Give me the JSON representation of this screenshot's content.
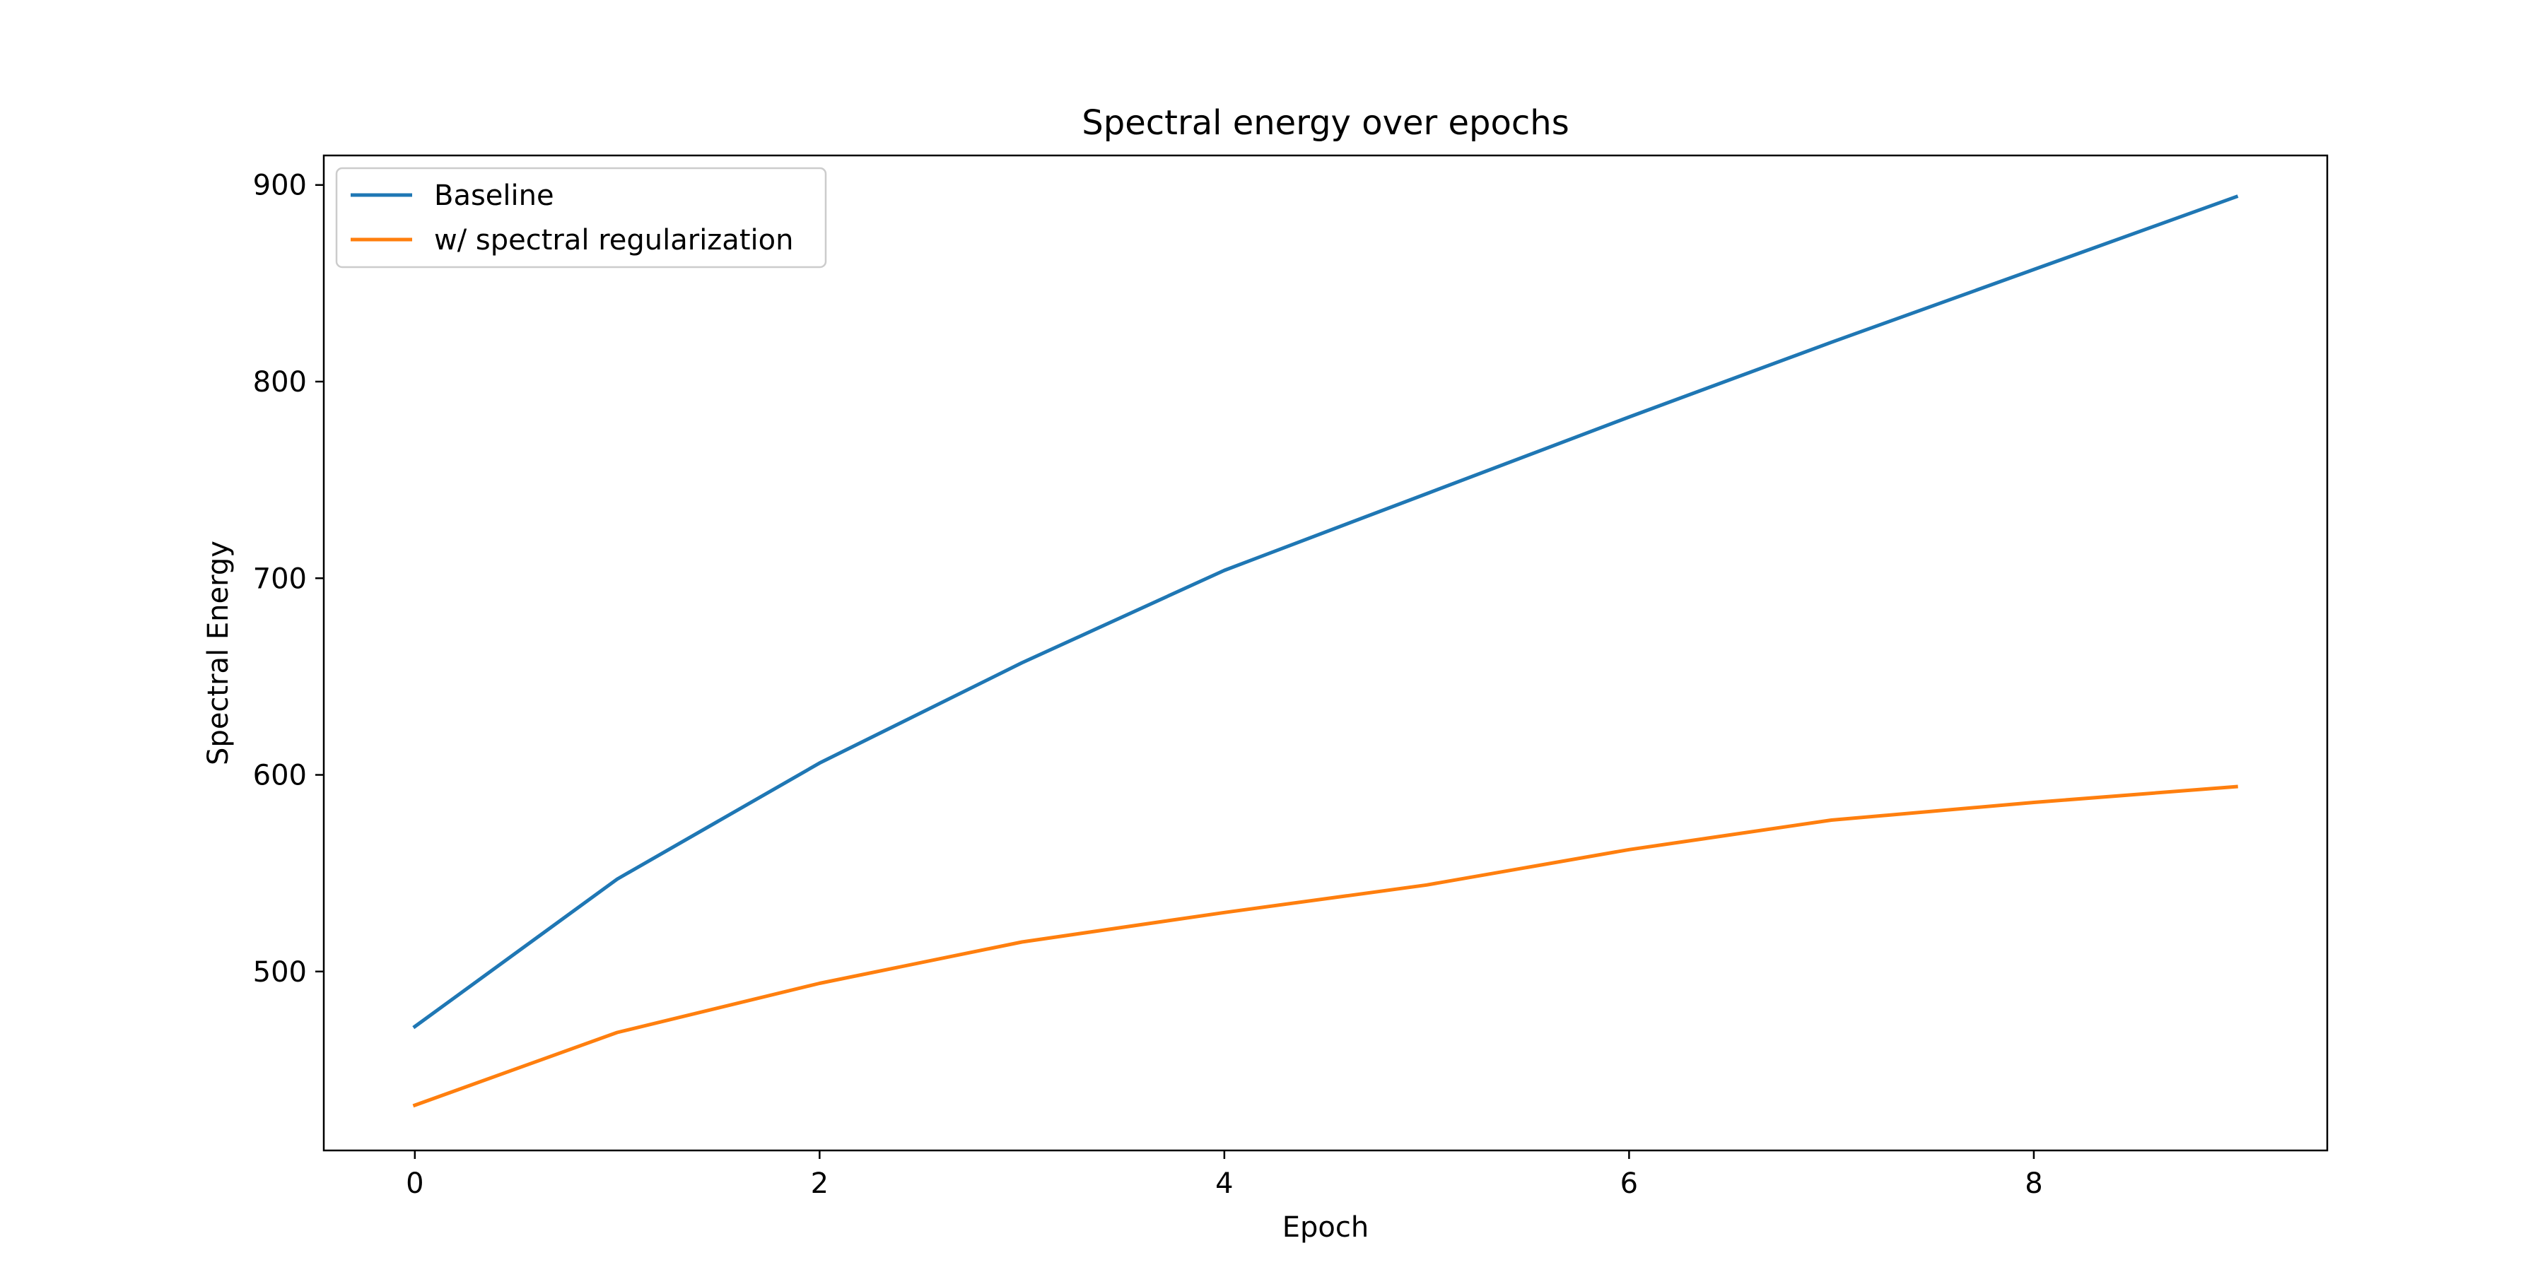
{
  "chart_data": {
    "type": "line",
    "title": "Spectral energy over epochs",
    "xlabel": "Epoch",
    "ylabel": "Spectral Energy",
    "x": [
      0,
      1,
      2,
      3,
      4,
      5,
      6,
      7,
      8,
      9
    ],
    "xlim": [
      -0.45,
      9.45
    ],
    "ylim": [
      409,
      915
    ],
    "xticks": [
      0,
      2,
      4,
      6,
      8
    ],
    "yticks": [
      500,
      600,
      700,
      800,
      900
    ],
    "xtick_labels": [
      "0",
      "2",
      "4",
      "6",
      "8"
    ],
    "ytick_labels": [
      "500",
      "600",
      "700",
      "800",
      "900"
    ],
    "grid": false,
    "legend_position": "top-left",
    "series": [
      {
        "name": "Baseline",
        "color": "#1f77b4",
        "values": [
          472,
          547,
          606,
          657,
          704,
          743,
          782,
          820,
          857,
          894
        ]
      },
      {
        "name": "w/ spectral regularization",
        "color": "#ff7f0e",
        "values": [
          432,
          469,
          494,
          515,
          530,
          544,
          562,
          577,
          586,
          594
        ]
      }
    ]
  }
}
